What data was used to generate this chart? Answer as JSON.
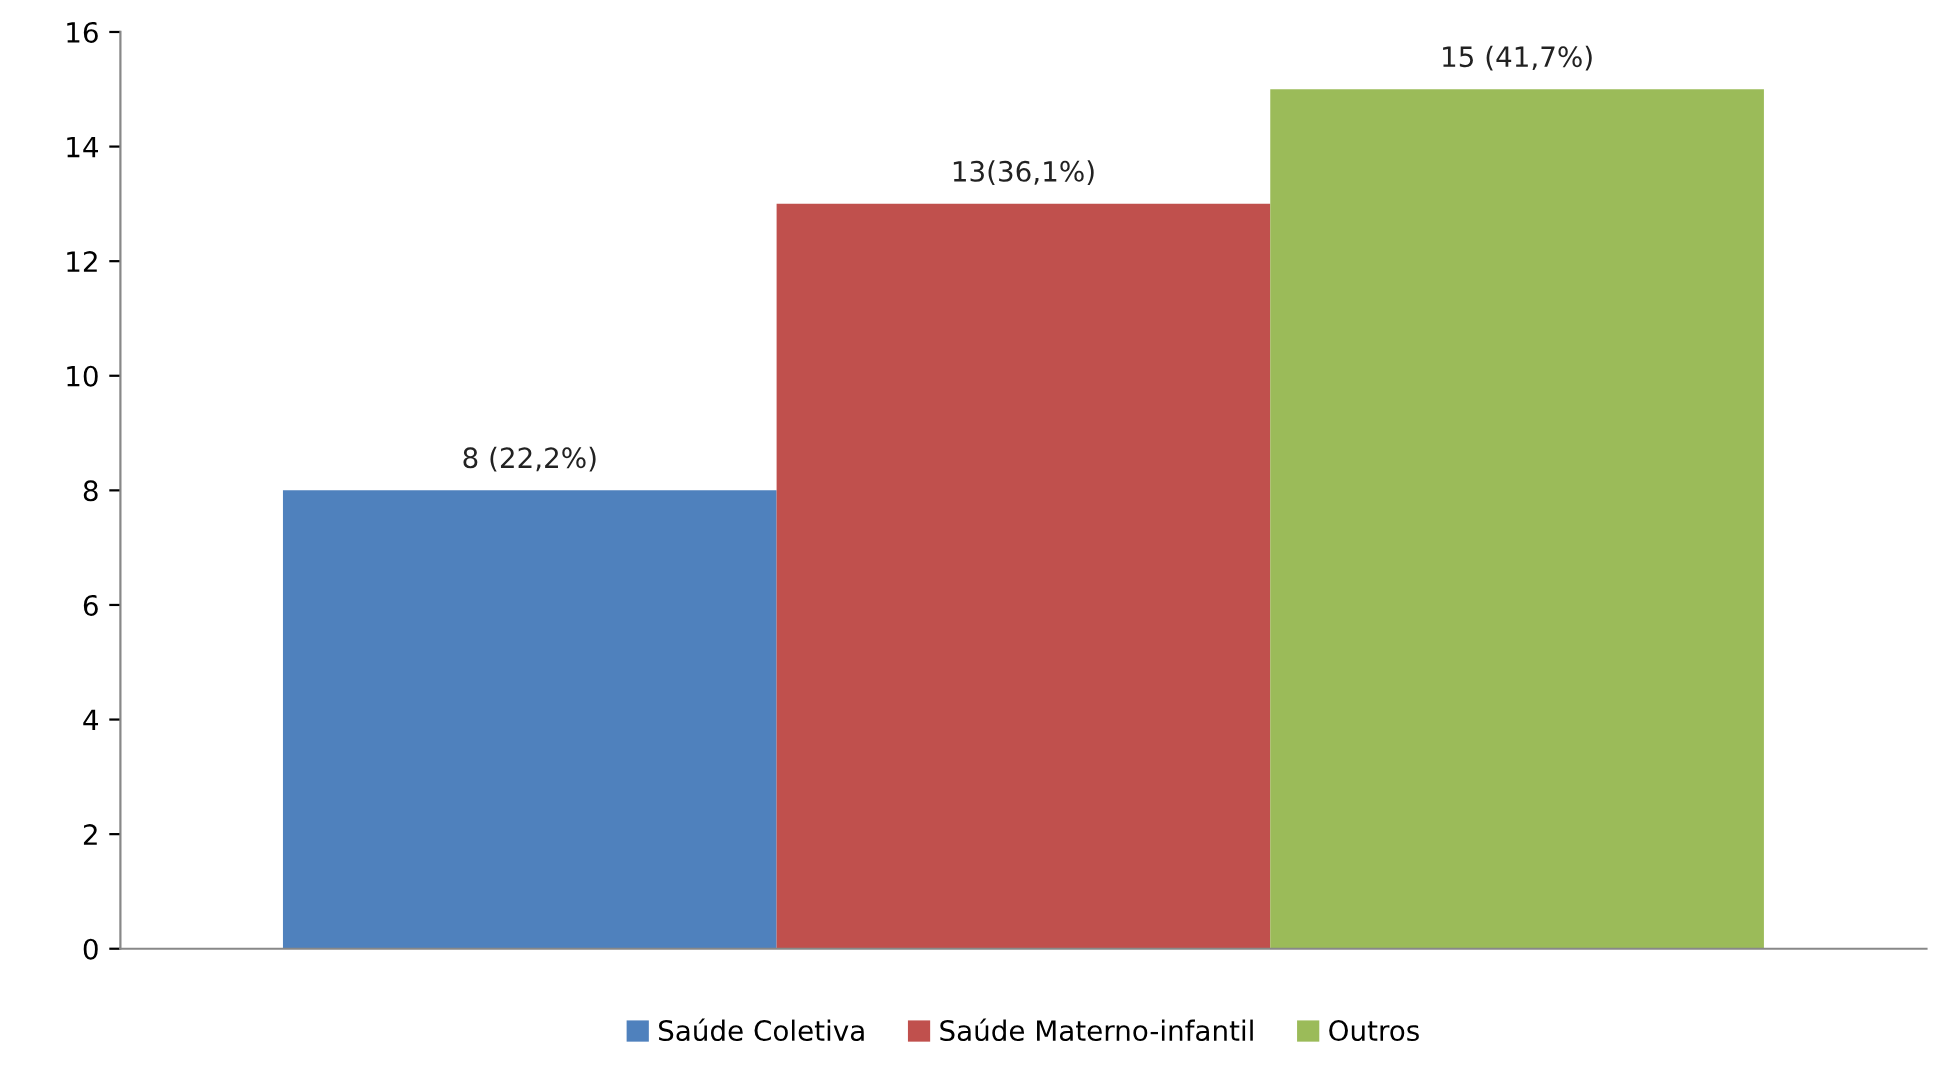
{
  "chart_data": {
    "type": "bar",
    "categories": [
      null
    ],
    "series": [
      {
        "name": "Saúde Coletiva",
        "color": "#4f81bd",
        "values": [
          8
        ],
        "value_labels": [
          "8 (22,2%)"
        ]
      },
      {
        "name": "Saúde Materno-infantil",
        "color": "#c0504d",
        "values": [
          13
        ],
        "value_labels": [
          "13(36,1%)"
        ]
      },
      {
        "name": "Outros",
        "color": "#9bbb59",
        "values": [
          15
        ],
        "value_labels": [
          "15 (41,7%)"
        ]
      }
    ],
    "ylim": [
      0,
      16
    ],
    "yticks": [
      0,
      2,
      4,
      6,
      8,
      10,
      12,
      14,
      16
    ],
    "grid": false,
    "legend": "bottom"
  }
}
